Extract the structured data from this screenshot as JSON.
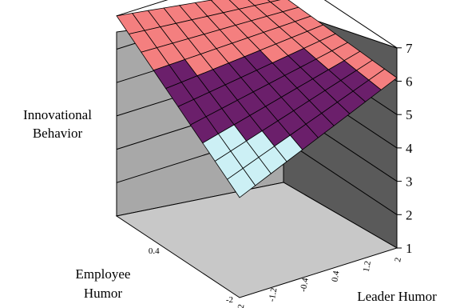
{
  "chart_data": {
    "type": "surface",
    "zlabel_line1": "Innovational",
    "zlabel_line2": "Behavior",
    "xlabel": "Leader Humor",
    "ylabel_line1": "Employee",
    "ylabel_line2": "Humor",
    "z_ticks": [
      "1",
      "2",
      "3",
      "4",
      "5",
      "6",
      "7"
    ],
    "x_ticks": [
      "-2",
      "-1.2",
      "-0.4",
      "0.4",
      "1.2",
      "2"
    ],
    "y_ticks": [
      "-2",
      "0.4"
    ],
    "zlim": [
      1,
      7
    ],
    "surface_corners": {
      "leader_-2_employee_-2": 4.0,
      "leader_2_employee_-2": 6.1,
      "leader_-2_employee_2": 7.0,
      "leader_2_employee_2": 6.3
    },
    "color_bands": [
      {
        "range": "3-4",
        "color": "#ccf0f5"
      },
      {
        "range": "4-5",
        "color": "#ccf0f5"
      },
      {
        "range": "5-6",
        "color": "#6b1f6b"
      },
      {
        "range": "6-7",
        "color": "#f47f7f"
      }
    ],
    "grid": true
  }
}
